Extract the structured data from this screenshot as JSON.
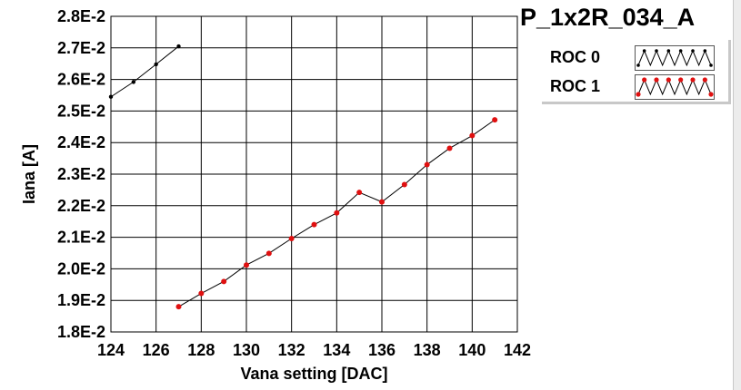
{
  "plot_name": "P_1x2R_034_A",
  "legend": {
    "items": [
      {
        "label": "ROC 0",
        "color": "#000000"
      },
      {
        "label": "ROC 1",
        "color": "#e01010"
      }
    ]
  },
  "chart_data": {
    "type": "line",
    "title": "",
    "xlabel": "Vana setting [DAC]",
    "ylabel": "Iana [A]",
    "xlim": [
      124,
      142
    ],
    "ylim": [
      0.018,
      0.028
    ],
    "x_ticks": [
      124,
      126,
      128,
      130,
      132,
      134,
      136,
      138,
      140,
      142
    ],
    "x_tick_labels": [
      "124",
      "126",
      "128",
      "130",
      "132",
      "134",
      "136",
      "138",
      "140",
      "142"
    ],
    "y_ticks": [
      0.018,
      0.019,
      0.02,
      0.021,
      0.022,
      0.023,
      0.024,
      0.025,
      0.026,
      0.027,
      0.028
    ],
    "y_tick_labels": [
      "1.8E-2",
      "1.9E-2",
      "2.0E-2",
      "2.1E-2",
      "2.2E-2",
      "2.3E-2",
      "2.4E-2",
      "2.5E-2",
      "2.6E-2",
      "2.7E-2",
      "2.8E-2"
    ],
    "grid": true,
    "legend_position": "top-right",
    "series": [
      {
        "name": "ROC 0",
        "color": "#000000",
        "x": [
          124,
          125,
          126,
          127
        ],
        "y": [
          0.02545,
          0.02592,
          0.02648,
          0.02705
        ]
      },
      {
        "name": "ROC 1",
        "color": "#e01010",
        "x": [
          127,
          128,
          129,
          130,
          131,
          132,
          133,
          134,
          135,
          136,
          137,
          138,
          139,
          140,
          141
        ],
        "y": [
          0.0188,
          0.01922,
          0.0196,
          0.02012,
          0.02049,
          0.02096,
          0.0214,
          0.02177,
          0.02242,
          0.02212,
          0.02267,
          0.0233,
          0.02382,
          0.02422,
          0.02472
        ]
      }
    ]
  }
}
